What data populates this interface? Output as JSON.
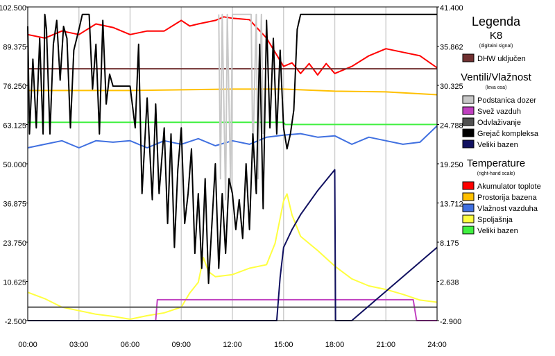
{
  "chart_data": {
    "type": "line",
    "legend_title": "Legenda",
    "xlim": [
      0,
      24
    ],
    "xticks": [
      {
        "value": 0,
        "label": "00:00"
      },
      {
        "value": 3,
        "label": "03:00"
      },
      {
        "value": 6,
        "label": "06:00"
      },
      {
        "value": 9,
        "label": "09:00"
      },
      {
        "value": 12,
        "label": "12:00"
      },
      {
        "value": 15,
        "label": "15:00"
      },
      {
        "value": 18,
        "label": "18:00"
      },
      {
        "value": 21,
        "label": "21:00"
      },
      {
        "value": 24,
        "label": "24:00"
      }
    ],
    "ylim": [
      -2.5,
      102.5
    ],
    "yticks": [
      {
        "value": -2.5,
        "label": "-2.500"
      },
      {
        "value": 10.625,
        "label": "10.625"
      },
      {
        "value": 23.75,
        "label": "23.750"
      },
      {
        "value": 36.875,
        "label": "36.875"
      },
      {
        "value": 50,
        "label": "50.000"
      },
      {
        "value": 63.125,
        "label": "63.125"
      },
      {
        "value": 76.25,
        "label": "76.250"
      },
      {
        "value": 89.375,
        "label": "89.375"
      },
      {
        "value": 102.5,
        "label": "102.500"
      }
    ],
    "y2lim": [
      -2.9,
      41.4
    ],
    "y2ticks": [
      {
        "value": -2.9,
        "label": "-2.900"
      },
      {
        "value": 2.638,
        "label": "2.638"
      },
      {
        "value": 8.175,
        "label": "8.175"
      },
      {
        "value": 13.712,
        "label": "13.712"
      },
      {
        "value": 19.25,
        "label": "19.250"
      },
      {
        "value": 24.788,
        "label": "24.788"
      },
      {
        "value": 30.325,
        "label": "30.325"
      },
      {
        "value": 35.862,
        "label": "35.862"
      },
      {
        "value": 41.4,
        "label": "41.400"
      }
    ],
    "grid": "x",
    "groups": [
      {
        "title": "K8",
        "note": "(digitalni signal)",
        "series": [
          {
            "name": "DHW uključen",
            "color": "#703030",
            "x": [
              0,
              24
            ],
            "values": [
              81.8,
              81.8
            ]
          }
        ]
      },
      {
        "title": "Ventili/Vlažnost",
        "note": "(leva osa)",
        "series": [
          {
            "name": "Podstanica dozer",
            "color": "#c8c8c8",
            "x": [
              11.2,
              11.3,
              11.4,
              11.6,
              11.7,
              11.9,
              12.0,
              12.2,
              13.1,
              13.2,
              13.4,
              13.5,
              13.7,
              13.8
            ],
            "values": [
              100,
              45,
              100,
              38,
              100,
              42,
              100,
              100,
              100,
              52,
              100,
              45,
              100,
              60
            ]
          },
          {
            "name": "Svež vazduh",
            "color": "#c040c0",
            "x": [
              0,
              7.5,
              7.6,
              22.6,
              22.8,
              24
            ],
            "values": [
              -2.5,
              -2.5,
              4.5,
              4.5,
              -2.5,
              -2.5
            ]
          },
          {
            "name": "Odvlaživanje",
            "color": "#505050",
            "x": [
              0,
              24
            ],
            "values": [
              2,
              2
            ]
          },
          {
            "name": "Grejač kompleksa",
            "color": "#000000",
            "x": [
              0,
              0.1,
              0.3,
              0.5,
              0.7,
              0.9,
              1.0,
              1.1,
              1.3,
              1.5,
              1.7,
              1.9,
              2.1,
              2.3,
              2.5,
              2.7,
              3.0,
              3.2,
              3.4,
              3.6,
              3.8,
              4.0,
              4.2,
              4.4,
              4.6,
              4.8,
              5.0,
              5.5,
              6.0,
              6.3,
              6.5,
              6.7,
              7.0,
              7.3,
              7.5,
              7.7,
              8.0,
              8.2,
              8.4,
              8.6,
              8.8,
              9.0,
              9.2,
              9.4,
              9.6,
              9.8,
              10.0,
              10.2,
              10.4,
              10.6,
              10.8,
              11.0,
              11.2,
              11.4,
              11.6,
              11.8,
              12.0,
              12.2,
              12.4,
              12.6,
              12.8,
              13.0,
              13.2,
              13.4,
              13.6,
              13.8,
              14.0,
              14.2,
              14.4,
              14.6,
              14.8,
              15.0,
              15.2,
              15.4,
              15.6,
              15.8,
              16,
              24
            ],
            "values": [
              96,
              60,
              85,
              62,
              92,
              60,
              100,
              95,
              60,
              90,
              98,
              78,
              96,
              92,
              62,
              88,
              95,
              100,
              100,
              100,
              75,
              90,
              60,
              98,
              70,
              80,
              76,
              76,
              76,
              62,
              90,
              40,
              72,
              38,
              70,
              40,
              62,
              30,
              60,
              22,
              48,
              62,
              30,
              40,
              55,
              20,
              40,
              15,
              45,
              10,
              30,
              50,
              15,
              40,
              20,
              45,
              40,
              28,
              38,
              25,
              50,
              28,
              60,
              40,
              90,
              35,
              98,
              62,
              92,
              60,
              88,
              62,
              55,
              60,
              68,
              95,
              100,
              100
            ]
          },
          {
            "name": "Veliki bazen",
            "color": "#101060",
            "x": [
              0,
              14.6,
              14.8,
              15.0,
              15.5,
              16,
              17,
              18,
              18.05,
              19,
              24
            ],
            "values": [
              -2.5,
              -2.5,
              12,
              22,
              28,
              33,
              41,
              48,
              -2.5,
              -2.5,
              22
            ]
          }
        ]
      },
      {
        "title": "Temperature",
        "note": "(right-hand scale)",
        "series": [
          {
            "name": "Akumulator toplote",
            "color": "#ff0000",
            "axis": "y2",
            "x": [
              0,
              1,
              2,
              3,
              4,
              5,
              6,
              7,
              8,
              9,
              9.5,
              10,
              11,
              11.5,
              12,
              13,
              14,
              15,
              15.5,
              16,
              16.5,
              17,
              17.5,
              18,
              19,
              20,
              21,
              22,
              23,
              24
            ],
            "values": [
              37.5,
              37,
              38,
              37.5,
              39,
              38.5,
              37.5,
              38,
              38,
              39.5,
              38.7,
              39,
              39.5,
              40,
              39.8,
              39.6,
              37,
              33,
              33.5,
              32,
              33.4,
              31.8,
              33.4,
              32,
              33,
              34.5,
              35.5,
              35,
              34.5,
              32.8
            ]
          },
          {
            "name": "Prostorija bazena",
            "color": "#ffc000",
            "axis": "y2",
            "x": [
              0,
              6,
              12,
              15,
              18,
              21,
              24
            ],
            "values": [
              29.6,
              29.6,
              29.8,
              29.8,
              29.5,
              29.4,
              29.0
            ]
          },
          {
            "name": "Vlažnost vazduha",
            "color": "#4070e0",
            "axis": "y2",
            "x": [
              0,
              1,
              2,
              3,
              4,
              5,
              6,
              7,
              8,
              9,
              10,
              11,
              12,
              13,
              14,
              15,
              16,
              17,
              18,
              19,
              20,
              21,
              22,
              23,
              24
            ],
            "values": [
              21.5,
              22,
              22.5,
              21.5,
              22.5,
              22.3,
              22.5,
              21.5,
              22.5,
              22,
              22.8,
              21.8,
              22.5,
              22,
              23,
              23.3,
              23.5,
              23,
              23.2,
              22,
              23,
              22.5,
              22,
              22.3,
              24.6
            ]
          },
          {
            "name": "Spoljašnja",
            "color": "#ffff40",
            "axis": "y2",
            "x": [
              0,
              1,
              2,
              3,
              4,
              5,
              6,
              7,
              8,
              9,
              9.5,
              10,
              10.3,
              10.6,
              11,
              12,
              13,
              14,
              14.5,
              15,
              15.2,
              15.5,
              16,
              17,
              18,
              19,
              20,
              21,
              22,
              23,
              24
            ],
            "values": [
              1.1,
              0.2,
              -1,
              -1.5,
              -2,
              -2.3,
              -2.7,
              -2.2,
              -1.8,
              -1,
              1,
              2.5,
              6,
              4,
              3.3,
              3.6,
              4.5,
              5,
              8,
              14,
              15,
              12,
              9,
              7,
              4.8,
              3,
              2,
              1.5,
              0.8,
              0,
              -0.3
            ]
          },
          {
            "name": "Veliki bazen",
            "color": "#40f040",
            "axis": "y2",
            "x": [
              0,
              15,
              15.1,
              24
            ],
            "values": [
              25.1,
              25.1,
              24.8,
              24.8
            ]
          }
        ]
      }
    ]
  }
}
